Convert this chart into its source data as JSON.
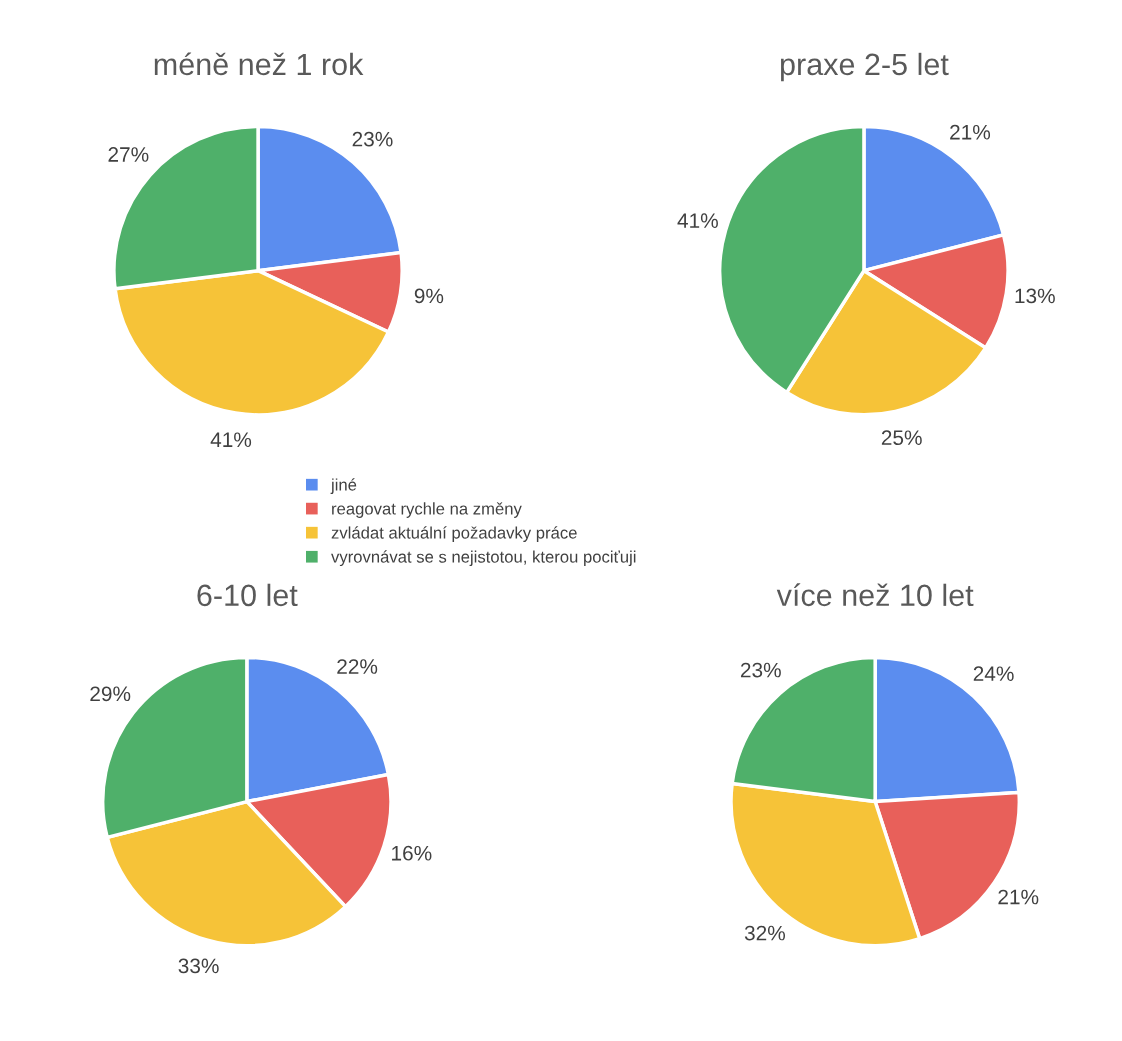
{
  "chart_data": [
    {
      "type": "pie",
      "title": "méně než 1 rok",
      "categories": [
        "jiné",
        "reagovat rychle na změny",
        "zvládat aktuální požadavky práce",
        "vyrovnávat se s nejistotou, kterou pociťuji"
      ],
      "values": [
        23,
        9,
        41,
        27
      ],
      "colors": [
        "#5b8def",
        "#e8605a",
        "#f6c338",
        "#4fb06a"
      ],
      "value_labels": [
        "23%",
        "9%",
        "41%",
        "27%"
      ],
      "legend": "bottom"
    },
    {
      "type": "pie",
      "title": "praxe 2-5 let",
      "categories": [
        null,
        null,
        null,
        null
      ],
      "values": [
        21,
        13,
        25,
        41
      ],
      "colors": [
        "#5b8def",
        "#e8605a",
        "#f6c338",
        "#4fb06a"
      ],
      "value_labels": [
        "21%",
        "13%",
        "25%",
        "41%"
      ]
    },
    {
      "type": "pie",
      "title": "6-10 let",
      "categories": [
        null,
        null,
        null,
        null
      ],
      "values": [
        22,
        16,
        33,
        29
      ],
      "colors": [
        "#5b8def",
        "#e8605a",
        "#f6c338",
        "#4fb06a"
      ],
      "value_labels": [
        "22%",
        "16%",
        "33%",
        "29%"
      ]
    },
    {
      "type": "pie",
      "title": "více než 10 let",
      "categories": [
        null,
        null,
        null,
        null
      ],
      "values": [
        24,
        21,
        32,
        23
      ],
      "colors": [
        "#5b8def",
        "#e8605a",
        "#f6c338",
        "#4fb06a"
      ],
      "value_labels": [
        "24%",
        "21%",
        "32%",
        "23%"
      ]
    }
  ]
}
